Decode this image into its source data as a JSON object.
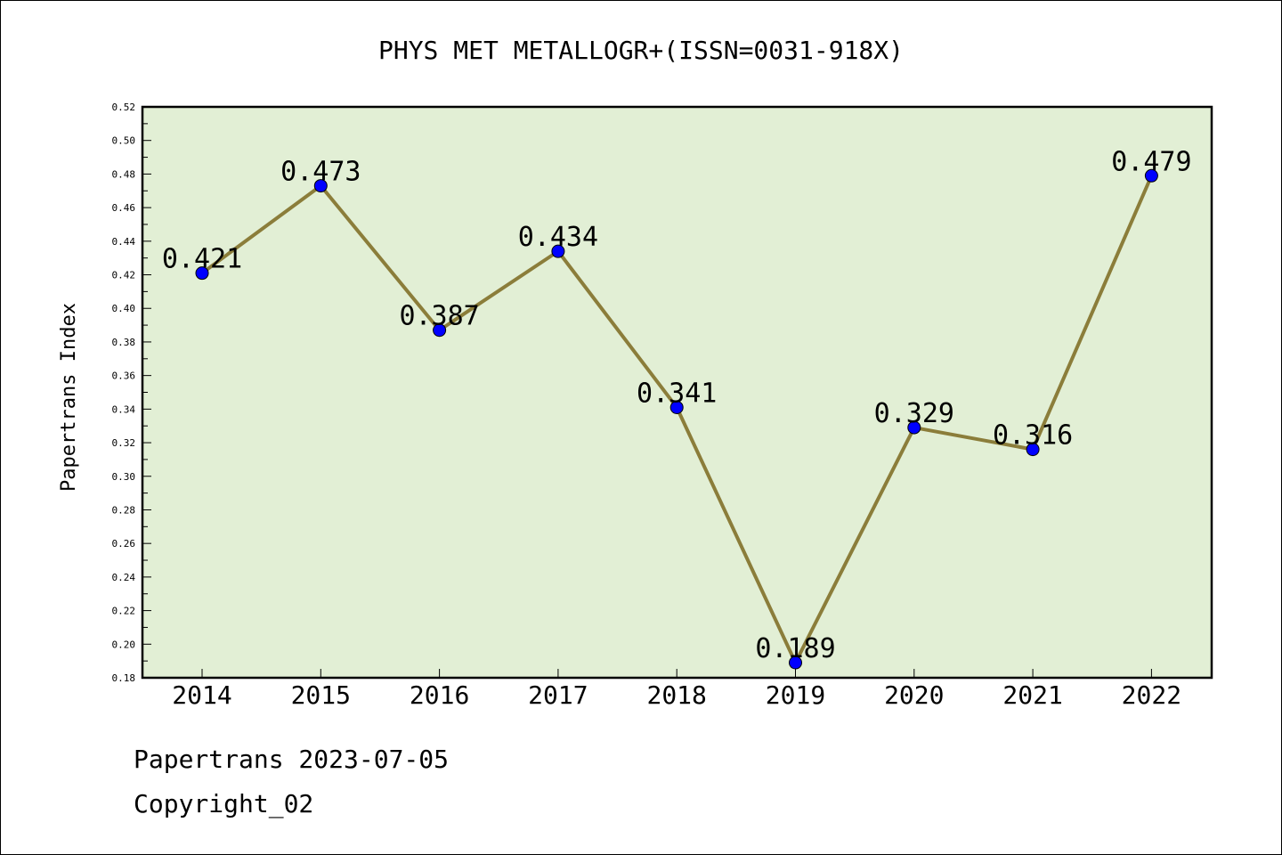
{
  "chart_data": {
    "type": "line",
    "title": "PHYS MET METALLOGR+(ISSN=0031-918X)",
    "xlabel": "",
    "ylabel": "Papertrans Index",
    "categories": [
      "2014",
      "2015",
      "2016",
      "2017",
      "2018",
      "2019",
      "2020",
      "2021",
      "2022"
    ],
    "values": [
      0.421,
      0.473,
      0.387,
      0.434,
      0.341,
      0.189,
      0.329,
      0.316,
      0.479
    ],
    "data_labels": [
      "0.421",
      "0.473",
      "0.387",
      "0.434",
      "0.341",
      "0.189",
      "0.329",
      "0.316",
      "0.479"
    ],
    "ylim": [
      0.18,
      0.52
    ],
    "yticks": [
      "0.18",
      "0.20",
      "0.22",
      "0.24",
      "0.26",
      "0.28",
      "0.30",
      "0.32",
      "0.34",
      "0.36",
      "0.38",
      "0.40",
      "0.42",
      "0.44",
      "0.46",
      "0.48",
      "0.50",
      "0.52"
    ],
    "grid": false,
    "colors": {
      "plot_background": "#e2efd5",
      "line": "#8b7d3a",
      "marker": "#0000ff"
    }
  },
  "footer": {
    "line1": "Papertrans 2023-07-05",
    "line2": "Copyright_02"
  }
}
